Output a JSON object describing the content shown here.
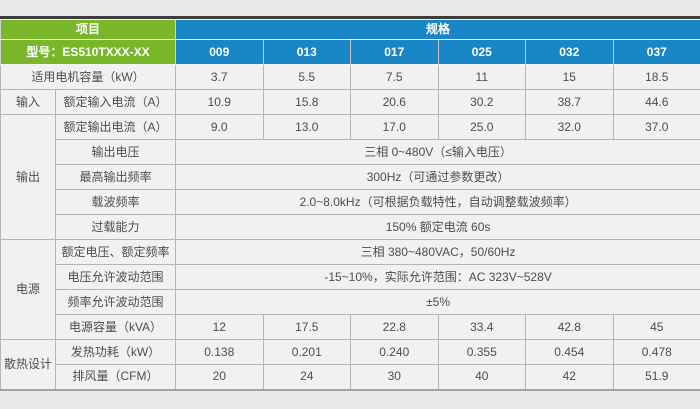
{
  "colors": {
    "header_green": "#79b629",
    "header_blue": "#1986c6",
    "dark_bar": "#3c3c3c",
    "page_background": "#ebe9e9",
    "cell_background": "#f2f1f1",
    "cell_border": "#b7b4b4",
    "body_text": "#4d4d4d"
  },
  "table": {
    "header": {
      "item": "项目",
      "spec": "规格"
    },
    "model": {
      "label": "型号：ES510TXXX-XX",
      "numbers": [
        "009",
        "013",
        "017",
        "025",
        "032",
        "037"
      ]
    },
    "rows": [
      {
        "label": "适用电机容量（kW）",
        "values": [
          "3.7",
          "5.5",
          "7.5",
          "11",
          "15",
          "18.5"
        ]
      },
      {
        "group": "输入",
        "label": "额定输入电流（A）",
        "values": [
          "10.9",
          "15.8",
          "20.6",
          "30.2",
          "38.7",
          "44.6"
        ]
      },
      {
        "group": "输出",
        "label": "额定输出电流（A）",
        "values": [
          "9.0",
          "13.0",
          "17.0",
          "25.0",
          "32.0",
          "37.0"
        ]
      },
      {
        "label": "输出电压",
        "merged": "三相 0~480V（≤输入电压）"
      },
      {
        "label": "最高输出频率",
        "merged": "300Hz（可通过参数更改）"
      },
      {
        "label": "载波频率",
        "merged": "2.0~8.0kHz（可根据负载特性，自动调整载波频率）"
      },
      {
        "label": "过载能力",
        "merged": "150% 额定电流 60s"
      },
      {
        "group": "电源",
        "label": "额定电压、额定频率",
        "merged": "三相 380~480VAC，50/60Hz"
      },
      {
        "label": "电压允许波动范围",
        "merged": "-15~10%，实际允许范围：AC 323V~528V"
      },
      {
        "label": "频率允许波动范围",
        "merged": "±5%"
      },
      {
        "label": "电源容量（kVA）",
        "values": [
          "12",
          "17.5",
          "22.8",
          "33.4",
          "42.8",
          "45"
        ]
      },
      {
        "group": "散热设计",
        "label": "发热功耗（kW）",
        "values": [
          "0.138",
          "0.201",
          "0.240",
          "0.355",
          "0.454",
          "0.478"
        ]
      },
      {
        "label": "排风量（CFM）",
        "values": [
          "20",
          "24",
          "30",
          "40",
          "42",
          "51.9"
        ]
      }
    ]
  }
}
